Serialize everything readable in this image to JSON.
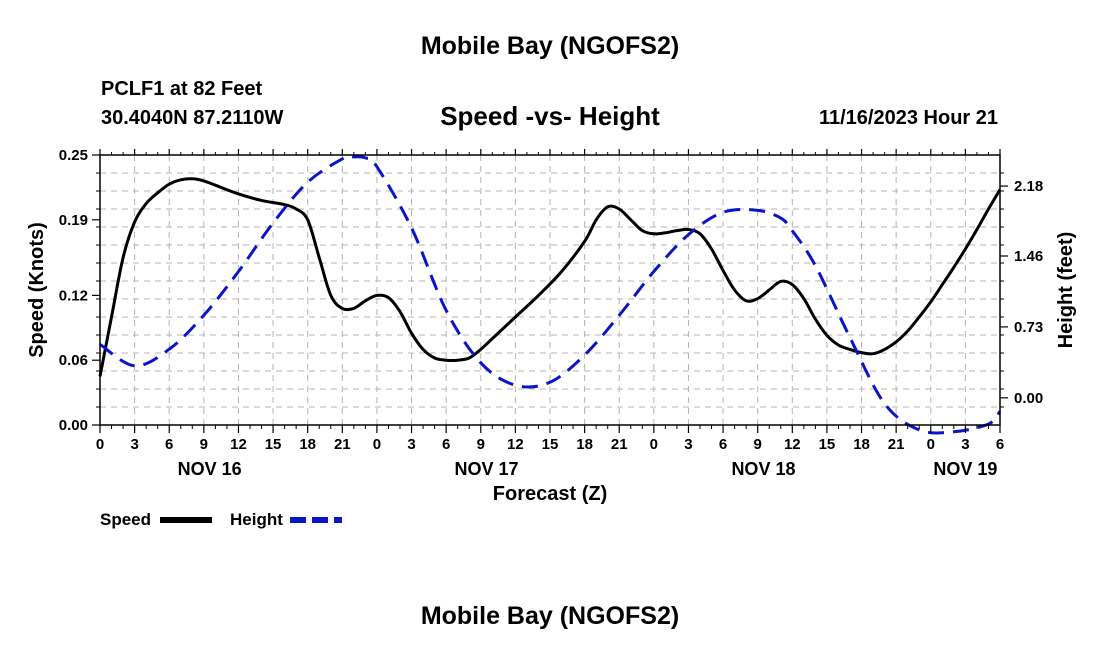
{
  "header": {
    "title": "Mobile Bay (NGOFS2)",
    "station": "PCLF1 at 82 Feet",
    "coords": "30.4040N  87.2110W",
    "datetime": "11/16/2023 Hour 21",
    "footer_title": "Mobile Bay (NGOFS2)"
  },
  "colors": {
    "speed": "#000000",
    "height": "#0a14c8",
    "grid": "#b4b4b4"
  },
  "chart_data": {
    "type": "line",
    "title": "Speed -vs- Height",
    "xlabel": "Forecast (Z)",
    "ylabel": "Speed (Knots)",
    "y2label": "Height (feet)",
    "xlim": [
      0,
      78
    ],
    "ylim": [
      0,
      0.25
    ],
    "y2lim": [
      -0.28,
      2.5
    ],
    "y_ticks": [
      0,
      0.06,
      0.12,
      0.19,
      0.25
    ],
    "y_tick_labels": [
      "0.00",
      "0.06",
      "0.12",
      "0.19",
      "0.25"
    ],
    "y2_ticks": [
      0,
      0.73,
      1.46,
      2.18
    ],
    "y2_tick_labels": [
      "0.00",
      "0.73",
      "1.46",
      "2.18"
    ],
    "x_ticks": [
      0,
      3,
      6,
      9,
      12,
      15,
      18,
      21,
      24,
      27,
      30,
      33,
      36,
      39,
      42,
      45,
      48,
      51,
      54,
      57,
      60,
      63,
      66,
      69,
      72,
      75,
      78
    ],
    "x_tick_labels": [
      "0",
      "3",
      "6",
      "9",
      "12",
      "15",
      "18",
      "21",
      "0",
      "3",
      "6",
      "9",
      "12",
      "15",
      "18",
      "21",
      "0",
      "3",
      "6",
      "9",
      "12",
      "15",
      "18",
      "21",
      "0",
      "3",
      "6"
    ],
    "date_labels": [
      {
        "x": 9.5,
        "label": "NOV 16"
      },
      {
        "x": 33.5,
        "label": "NOV 17"
      },
      {
        "x": 57.5,
        "label": "NOV 18"
      },
      {
        "x": 75,
        "label": "NOV 19"
      }
    ],
    "series": [
      {
        "name": "Speed",
        "axis": "left",
        "style": "solid",
        "x": [
          0,
          1,
          2,
          3,
          4,
          5,
          6,
          7,
          8,
          9,
          10,
          12,
          14,
          16,
          17,
          18,
          19,
          20,
          21,
          22,
          23,
          24,
          25,
          26,
          27,
          28,
          29,
          30,
          31,
          32,
          33,
          34,
          36,
          38,
          40,
          42,
          43,
          44,
          45,
          46,
          47,
          48,
          49,
          50,
          51,
          52,
          53,
          54,
          55,
          56,
          57,
          58,
          59,
          60,
          61,
          62,
          63,
          64,
          65,
          66,
          67,
          68,
          69,
          70,
          71,
          72,
          73,
          74,
          75,
          76,
          77,
          78
        ],
        "y": [
          0.045,
          0.1,
          0.155,
          0.188,
          0.205,
          0.215,
          0.223,
          0.227,
          0.228,
          0.226,
          0.222,
          0.214,
          0.208,
          0.204,
          0.2,
          0.19,
          0.155,
          0.12,
          0.108,
          0.108,
          0.115,
          0.12,
          0.118,
          0.105,
          0.085,
          0.07,
          0.062,
          0.06,
          0.06,
          0.062,
          0.07,
          0.08,
          0.1,
          0.12,
          0.142,
          0.17,
          0.19,
          0.202,
          0.2,
          0.19,
          0.18,
          0.177,
          0.178,
          0.18,
          0.181,
          0.177,
          0.163,
          0.143,
          0.125,
          0.115,
          0.117,
          0.125,
          0.133,
          0.13,
          0.117,
          0.098,
          0.083,
          0.074,
          0.07,
          0.067,
          0.066,
          0.07,
          0.077,
          0.087,
          0.1,
          0.114,
          0.13,
          0.146,
          0.163,
          0.181,
          0.2,
          0.218
        ]
      },
      {
        "name": "Height",
        "axis": "right",
        "style": "dashed",
        "x": [
          0,
          3,
          6,
          9,
          12,
          15,
          18,
          21,
          22,
          23,
          24,
          27,
          30,
          33,
          36,
          39,
          42,
          45,
          48,
          51,
          54,
          57,
          59,
          60,
          62,
          65,
          68,
          71,
          74,
          77,
          78
        ],
        "y": [
          0.55,
          0.33,
          0.5,
          0.85,
          1.3,
          1.8,
          2.22,
          2.46,
          2.48,
          2.47,
          2.38,
          1.75,
          0.9,
          0.36,
          0.13,
          0.16,
          0.44,
          0.85,
          1.3,
          1.68,
          1.91,
          1.93,
          1.85,
          1.72,
          1.36,
          0.62,
          -0.06,
          -0.33,
          -0.35,
          -0.27,
          -0.14
        ]
      }
    ],
    "legend": [
      {
        "name": "Speed",
        "label": "Speed"
      },
      {
        "name": "Height",
        "label": "Height"
      }
    ],
    "grid": true,
    "legend_position": "bottom-left"
  }
}
